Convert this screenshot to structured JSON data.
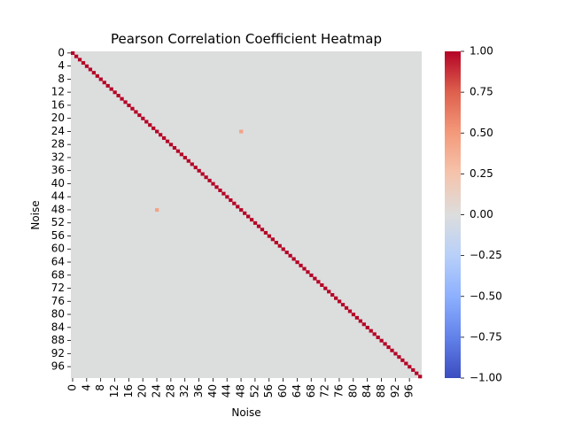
{
  "chart_data": {
    "type": "heatmap",
    "title": "Pearson Correlation Coefficient Heatmap",
    "xlabel": "Noise",
    "ylabel": "Noise",
    "size": 100,
    "tick_step": 4,
    "x_tick_labels": [
      "0",
      "4",
      "8",
      "12",
      "16",
      "20",
      "24",
      "28",
      "32",
      "36",
      "40",
      "44",
      "48",
      "52",
      "56",
      "60",
      "64",
      "68",
      "72",
      "76",
      "80",
      "84",
      "88",
      "92",
      "96"
    ],
    "y_tick_labels": [
      "0",
      "4",
      "8",
      "12",
      "16",
      "20",
      "24",
      "28",
      "32",
      "36",
      "40",
      "44",
      "48",
      "52",
      "56",
      "60",
      "64",
      "68",
      "72",
      "76",
      "80",
      "84",
      "88",
      "92",
      "96"
    ],
    "diagonal_value": 1.0,
    "background_value": 0.0,
    "notable_offdiagonal": [
      {
        "row": 24,
        "col": 48,
        "value": 0.45
      },
      {
        "row": 48,
        "col": 24,
        "value": 0.45
      }
    ],
    "colorscale": "coolwarm",
    "colorbar": {
      "min": -1.0,
      "max": 1.0,
      "ticks": [
        "1.00",
        "0.75",
        "0.50",
        "0.25",
        "0.00",
        "−0.25",
        "−0.50",
        "−0.75",
        "−1.00"
      ]
    },
    "grid": false,
    "legend": "colorbar-right"
  }
}
